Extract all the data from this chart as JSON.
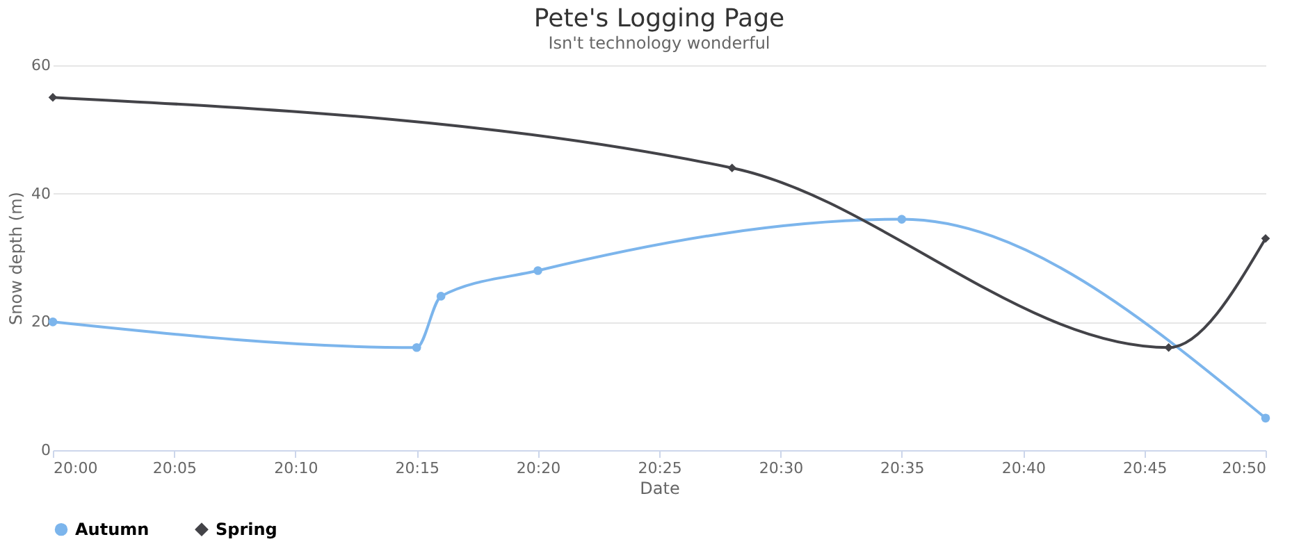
{
  "chart_data": {
    "type": "line",
    "title": "Pete's Logging Page",
    "subtitle": "Isn't technology wonderful",
    "xlabel": "Date",
    "ylabel": "Snow depth (m)",
    "series": [
      {
        "name": "Autumn",
        "color": "#7cb5ec",
        "marker": "circle",
        "x": [
          20.0,
          20.25,
          20.2667,
          20.3333,
          20.5833,
          20.8333
        ],
        "values": [
          20,
          16,
          24,
          28,
          36,
          5
        ]
      },
      {
        "name": "Spring",
        "color": "#434348",
        "marker": "diamond",
        "x": [
          20.0,
          20.4667,
          20.7667,
          20.8333
        ],
        "values": [
          55,
          44,
          16,
          33
        ]
      }
    ],
    "xlim": [
      20.0,
      20.8333
    ],
    "xticks": [
      {
        "value": 20.0,
        "label": "20:00"
      },
      {
        "value": 20.0833,
        "label": "20:05"
      },
      {
        "value": 20.1667,
        "label": "20:10"
      },
      {
        "value": 20.25,
        "label": "20:15"
      },
      {
        "value": 20.3333,
        "label": "20:20"
      },
      {
        "value": 20.4167,
        "label": "20:25"
      },
      {
        "value": 20.5,
        "label": "20:30"
      },
      {
        "value": 20.5833,
        "label": "20:35"
      },
      {
        "value": 20.6667,
        "label": "20:40"
      },
      {
        "value": 20.75,
        "label": "20:45"
      },
      {
        "value": 20.8333,
        "label": "20:50"
      }
    ],
    "ylim": [
      0,
      60
    ],
    "yticks": [
      0,
      20,
      40,
      60
    ],
    "grid": "y",
    "legend": "bottom",
    "line_style": "solid"
  }
}
